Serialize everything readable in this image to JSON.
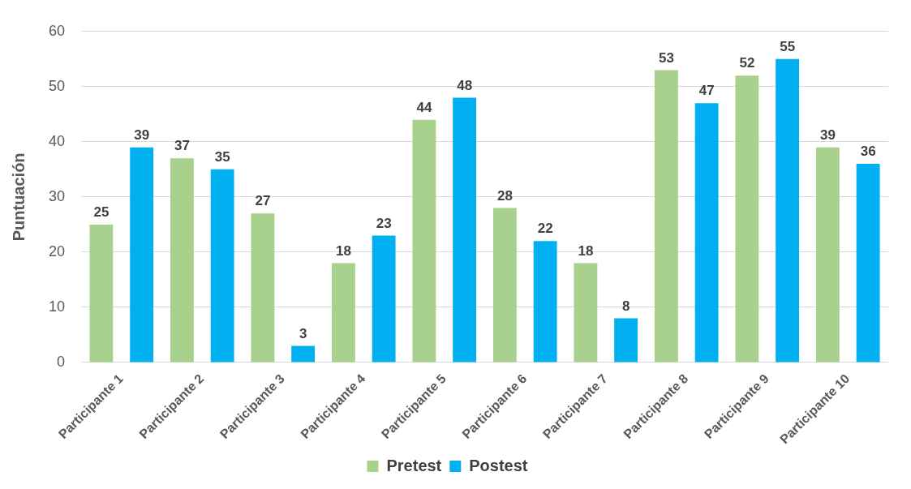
{
  "chart_data": {
    "type": "bar",
    "ylabel": "Puntuación",
    "categories": [
      "Participante 1",
      "Participante 2",
      "Participante 3",
      "Participante 4",
      "Participante 5",
      "Participante 6",
      "Participante 7",
      "Participante 8",
      "Participante 9",
      "Participante 10"
    ],
    "series": [
      {
        "name": "Pretest",
        "color": "#a9d18e",
        "values": [
          25,
          37,
          27,
          18,
          44,
          28,
          18,
          53,
          52,
          39
        ]
      },
      {
        "name": "Postest",
        "color": "#00b0f0",
        "values": [
          39,
          35,
          3,
          23,
          48,
          22,
          8,
          47,
          55,
          36
        ]
      }
    ],
    "ylim": [
      0,
      60
    ],
    "yticks": [
      0,
      10,
      20,
      30,
      40,
      50,
      60
    ],
    "grid": "y",
    "legend": "bottom",
    "data_labels": true
  }
}
